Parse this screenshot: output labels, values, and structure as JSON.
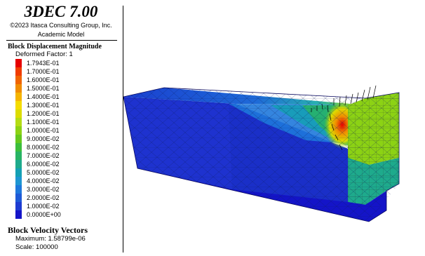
{
  "header": {
    "app_title": "3DEC 7.00",
    "copyright": "©2023 Itasca Consulting Group, Inc.",
    "license": "Academic Model"
  },
  "displacement_legend": {
    "title": "Block  Displacement Magnitude",
    "deformed_factor": "Deformed Factor: 1",
    "entries": [
      {
        "label": "1.7943E-01",
        "color": "#e60000"
      },
      {
        "label": "1.7000E-01",
        "color": "#f03c00"
      },
      {
        "label": "1.6000E-01",
        "color": "#f06400"
      },
      {
        "label": "1.5000E-01",
        "color": "#f08c00"
      },
      {
        "label": "1.4000E-01",
        "color": "#f5b400"
      },
      {
        "label": "1.3000E-01",
        "color": "#f5dc00"
      },
      {
        "label": "1.2000E-01",
        "color": "#dcdc00"
      },
      {
        "label": "1.1000E-01",
        "color": "#b4dc14"
      },
      {
        "label": "1.0000E-01",
        "color": "#8cd214"
      },
      {
        "label": "9.0000E-02",
        "color": "#64c81e"
      },
      {
        "label": "8.0000E-02",
        "color": "#3cbe3c"
      },
      {
        "label": "7.0000E-02",
        "color": "#28b464"
      },
      {
        "label": "6.0000E-02",
        "color": "#1eaa8c"
      },
      {
        "label": "5.0000E-02",
        "color": "#14a0b4"
      },
      {
        "label": "4.0000E-02",
        "color": "#1e96d2"
      },
      {
        "label": "3.0000E-02",
        "color": "#1e78dc"
      },
      {
        "label": "2.0000E-02",
        "color": "#1e5ad7"
      },
      {
        "label": "1.0000E-02",
        "color": "#1e3cd2"
      },
      {
        "label": "0.0000E+00",
        "color": "#1414c8"
      }
    ]
  },
  "velocity_legend": {
    "title": "Block Velocity Vectors",
    "maximum": "Maximum: 1.58799e-06",
    "scale": "Scale: 100000"
  }
}
